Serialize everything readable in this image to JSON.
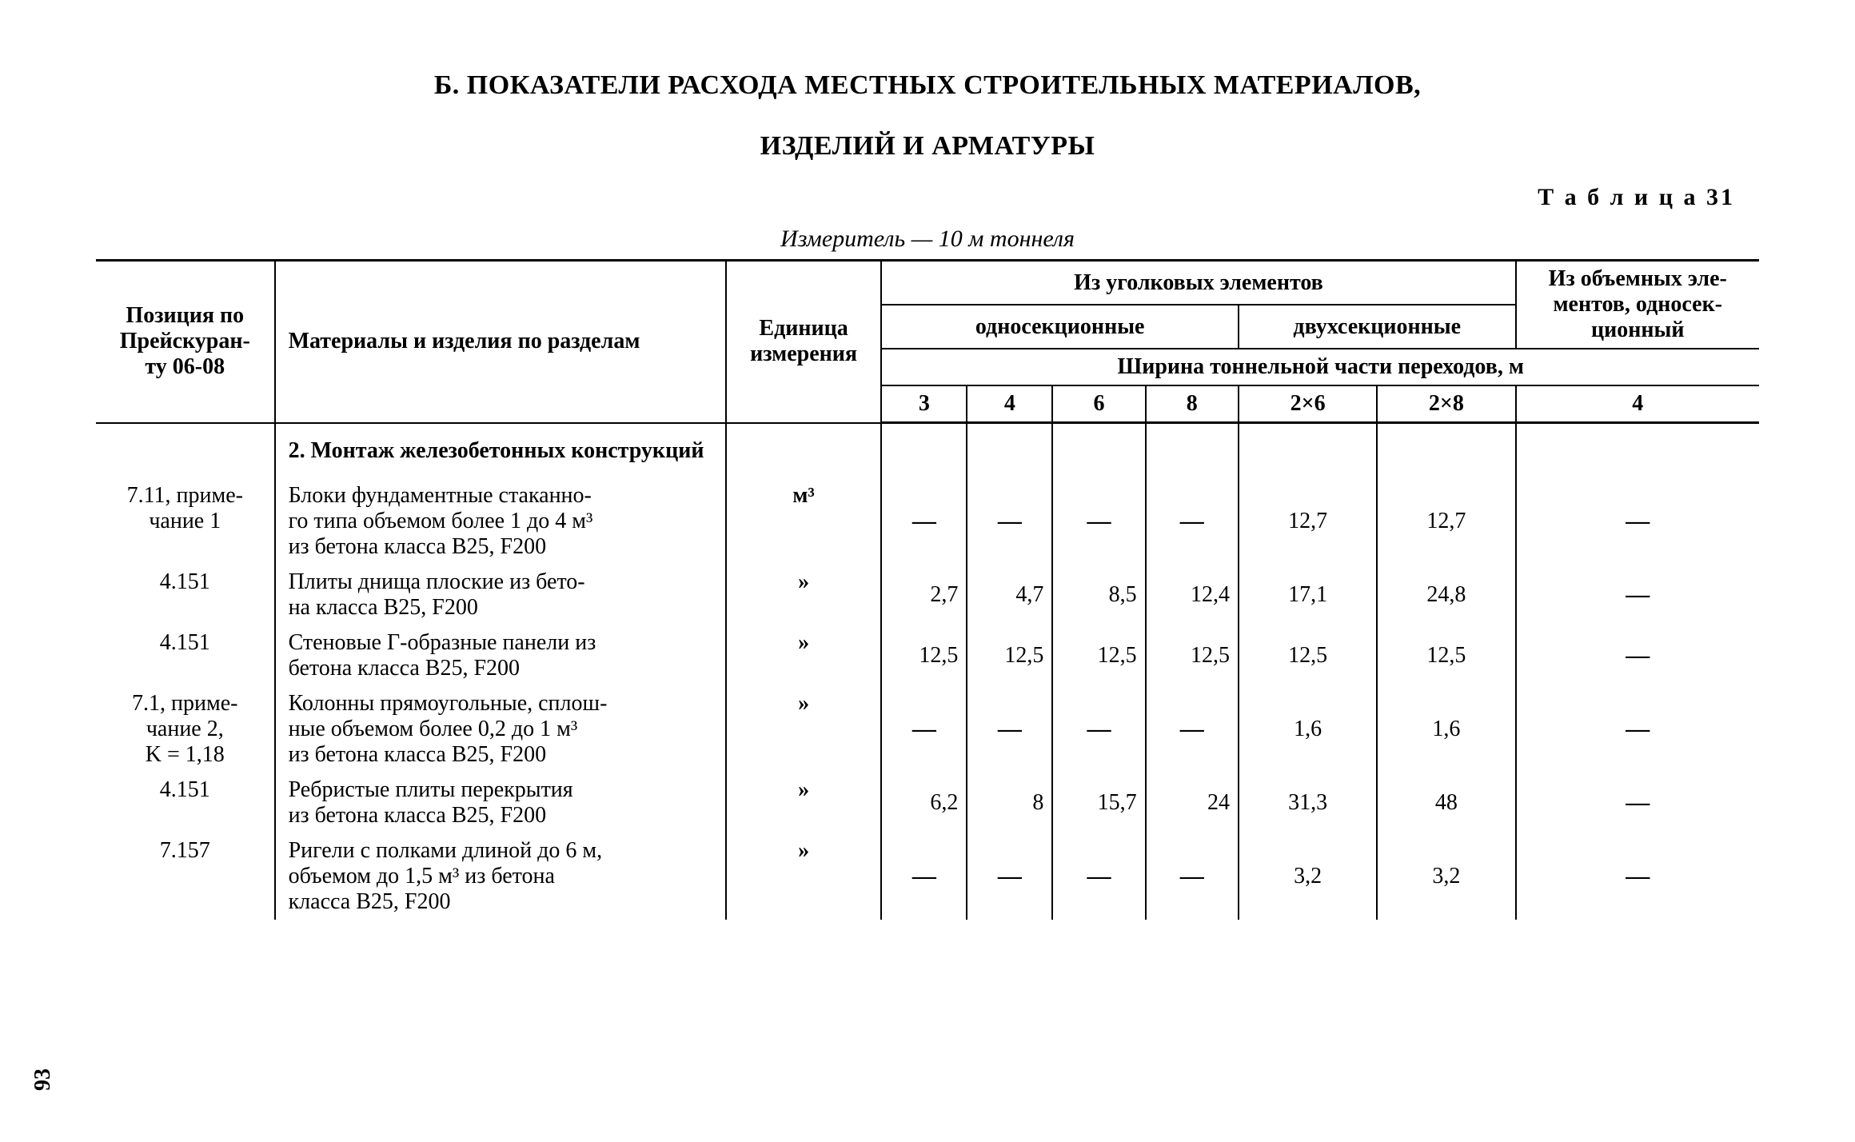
{
  "title_line1": "Б. ПОКАЗАТЕЛИ РАСХОДА МЕСТНЫХ СТРОИТЕЛЬНЫХ МАТЕРИАЛОВ,",
  "title_line2": "ИЗДЕЛИЙ И АРМАТУРЫ",
  "table_caption": "Т а б л и ц а  31",
  "measure": "Измеритель — 10 м тоннеля",
  "page_number": "93",
  "header": {
    "pos": "Позиция по Прейскуран-\nту 06-08",
    "materials": "Материалы и изделия по разделам",
    "unit": "Единица\nизмерения",
    "group_angle": "Из уголковых элементов",
    "group_volume": "Из объемных эле-\nментов, односек-\nционный",
    "sub_single": "односекционные",
    "sub_double": "двухсекционные",
    "width_line": "Ширина тоннельной части переходов, м",
    "w3": "3",
    "w4": "4",
    "w6": "6",
    "w8": "8",
    "w26": "2×6",
    "w28": "2×8",
    "wV4": "4"
  },
  "section_heading": "2. Монтаж железобетонных конструкций",
  "rows": [
    {
      "pos": "7.11, приме-\nчание 1",
      "desc": "Блоки фундаментные стаканно-\nго типа объемом более 1 до 4 м³\nиз бетона класса В25, F200",
      "unit": "м³",
      "v3": "—",
      "v4": "—",
      "v6": "—",
      "v8": "—",
      "v26": "12,7",
      "v28": "12,7",
      "vV4": "—"
    },
    {
      "pos": "4.151",
      "desc": "Плиты днища плоские из бето-\nна класса В25, F200",
      "unit": "»",
      "v3": "2,7",
      "v4": "4,7",
      "v6": "8,5",
      "v8": "12,4",
      "v26": "17,1",
      "v28": "24,8",
      "vV4": "—"
    },
    {
      "pos": "4.151",
      "desc": "Стеновые Г-образные панели из\nбетона класса В25, F200",
      "unit": "»",
      "v3": "12,5",
      "v4": "12,5",
      "v6": "12,5",
      "v8": "12,5",
      "v26": "12,5",
      "v28": "12,5",
      "vV4": "—"
    },
    {
      "pos": "7.1, приме-\nчание 2,\nK = 1,18",
      "desc": "Колонны прямоугольные, сплош-\nные объемом более 0,2 до 1 м³\nиз бетона класса В25, F200",
      "unit": "»",
      "v3": "—",
      "v4": "—",
      "v6": "—",
      "v8": "—",
      "v26": "1,6",
      "v28": "1,6",
      "vV4": "—"
    },
    {
      "pos": "4.151",
      "desc": "Ребристые плиты перекрытия\nиз бетона класса В25, F200",
      "unit": "»",
      "v3": "6,2",
      "v4": "8",
      "v6": "15,7",
      "v8": "24",
      "v26": "31,3",
      "v28": "48",
      "vV4": "—"
    },
    {
      "pos": "7.157",
      "desc": "Ригели с полками длиной до 6 м,\nобъемом до 1,5 м³ из бетона\nкласса В25, F200",
      "unit": "»",
      "v3": "—",
      "v4": "—",
      "v6": "—",
      "v8": "—",
      "v26": "3,2",
      "v28": "3,2",
      "vV4": "—"
    }
  ]
}
